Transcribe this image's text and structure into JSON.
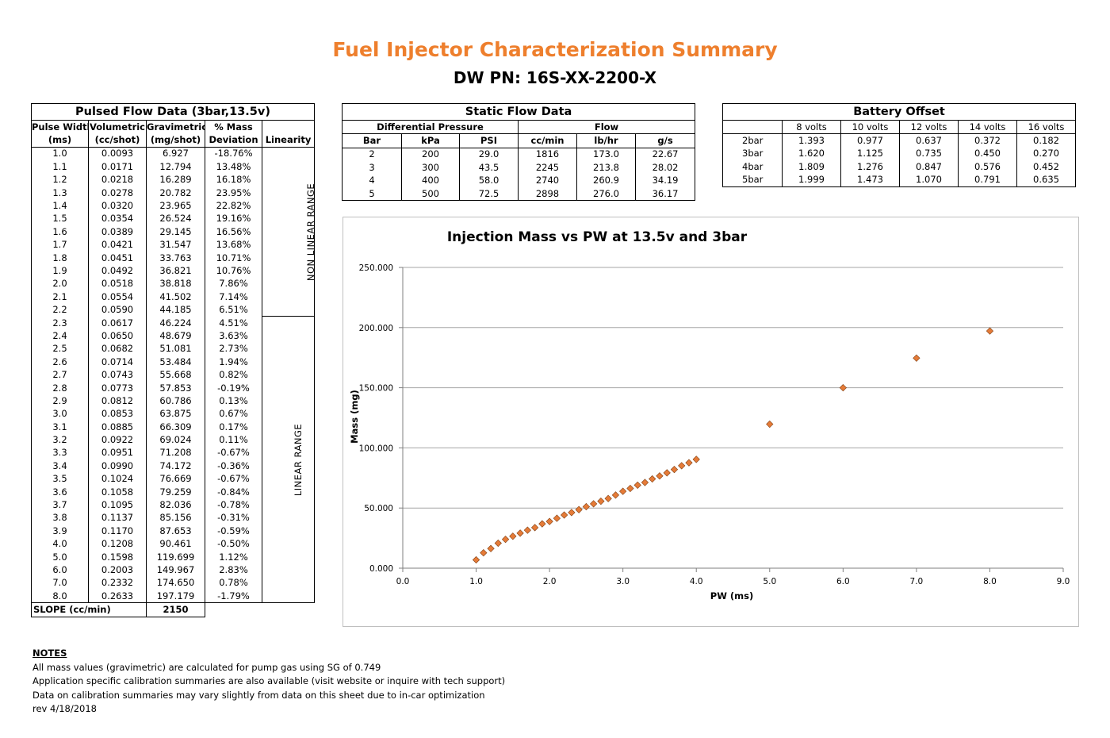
{
  "title": "Fuel Injector Characterization Summary",
  "subtitle": "DW PN: 16S-XX-2200-X",
  "pulsed": {
    "title": "Pulsed Flow Data (3bar,13.5v)",
    "headers": [
      [
        "Pulse Width",
        "(ms)"
      ],
      [
        "Volumetric",
        "(cc/shot)"
      ],
      [
        "Gravimetric",
        "(mg/shot)"
      ],
      [
        "% Mass",
        "Deviation"
      ],
      [
        "",
        "Linearity"
      ]
    ],
    "rows": [
      [
        "1.0",
        "0.0093",
        "6.927",
        "-18.76%"
      ],
      [
        "1.1",
        "0.0171",
        "12.794",
        "13.48%"
      ],
      [
        "1.2",
        "0.0218",
        "16.289",
        "16.18%"
      ],
      [
        "1.3",
        "0.0278",
        "20.782",
        "23.95%"
      ],
      [
        "1.4",
        "0.0320",
        "23.965",
        "22.82%"
      ],
      [
        "1.5",
        "0.0354",
        "26.524",
        "19.16%"
      ],
      [
        "1.6",
        "0.0389",
        "29.145",
        "16.56%"
      ],
      [
        "1.7",
        "0.0421",
        "31.547",
        "13.68%"
      ],
      [
        "1.8",
        "0.0451",
        "33.763",
        "10.71%"
      ],
      [
        "1.9",
        "0.0492",
        "36.821",
        "10.76%"
      ],
      [
        "2.0",
        "0.0518",
        "38.818",
        "7.86%"
      ],
      [
        "2.1",
        "0.0554",
        "41.502",
        "7.14%"
      ],
      [
        "2.2",
        "0.0590",
        "44.185",
        "6.51%"
      ],
      [
        "2.3",
        "0.0617",
        "46.224",
        "4.51%"
      ],
      [
        "2.4",
        "0.0650",
        "48.679",
        "3.63%"
      ],
      [
        "2.5",
        "0.0682",
        "51.081",
        "2.73%"
      ],
      [
        "2.6",
        "0.0714",
        "53.484",
        "1.94%"
      ],
      [
        "2.7",
        "0.0743",
        "55.668",
        "0.82%"
      ],
      [
        "2.8",
        "0.0773",
        "57.853",
        "-0.19%"
      ],
      [
        "2.9",
        "0.0812",
        "60.786",
        "0.13%"
      ],
      [
        "3.0",
        "0.0853",
        "63.875",
        "0.67%"
      ],
      [
        "3.1",
        "0.0885",
        "66.309",
        "0.17%"
      ],
      [
        "3.2",
        "0.0922",
        "69.024",
        "0.11%"
      ],
      [
        "3.3",
        "0.0951",
        "71.208",
        "-0.67%"
      ],
      [
        "3.4",
        "0.0990",
        "74.172",
        "-0.36%"
      ],
      [
        "3.5",
        "0.1024",
        "76.669",
        "-0.67%"
      ],
      [
        "3.6",
        "0.1058",
        "79.259",
        "-0.84%"
      ],
      [
        "3.7",
        "0.1095",
        "82.036",
        "-0.78%"
      ],
      [
        "3.8",
        "0.1137",
        "85.156",
        "-0.31%"
      ],
      [
        "3.9",
        "0.1170",
        "87.653",
        "-0.59%"
      ],
      [
        "4.0",
        "0.1208",
        "90.461",
        "-0.50%"
      ],
      [
        "5.0",
        "0.1598",
        "119.699",
        "1.12%"
      ],
      [
        "6.0",
        "0.2003",
        "149.967",
        "2.83%"
      ],
      [
        "7.0",
        "0.2332",
        "174.650",
        "0.78%"
      ],
      [
        "8.0",
        "0.2633",
        "197.179",
        "-1.79%"
      ]
    ],
    "nonlinear_label": "NON LINEAR RANGE",
    "linear_label": "LINEAR RANGE",
    "slope_label": "SLOPE (cc/min)",
    "slope_value": "2150"
  },
  "static": {
    "title": "Static Flow Data",
    "group_pressure": "Differential Pressure",
    "group_flow": "Flow",
    "headers": [
      "Bar",
      "kPa",
      "PSI",
      "cc/min",
      "lb/hr",
      "g/s"
    ],
    "rows": [
      [
        "2",
        "200",
        "29.0",
        "1816",
        "173.0",
        "22.67"
      ],
      [
        "3",
        "300",
        "43.5",
        "2245",
        "213.8",
        "28.02"
      ],
      [
        "4",
        "400",
        "58.0",
        "2740",
        "260.9",
        "34.19"
      ],
      [
        "5",
        "500",
        "72.5",
        "2898",
        "276.0",
        "36.17"
      ]
    ]
  },
  "battery": {
    "title": "Battery Offset",
    "headers": [
      "",
      "8 volts",
      "10 volts",
      "12 volts",
      "14 volts",
      "16 volts"
    ],
    "rows": [
      [
        "2bar",
        "1.393",
        "0.977",
        "0.637",
        "0.372",
        "0.182"
      ],
      [
        "3bar",
        "1.620",
        "1.125",
        "0.735",
        "0.450",
        "0.270"
      ],
      [
        "4bar",
        "1.809",
        "1.276",
        "0.847",
        "0.576",
        "0.452"
      ],
      [
        "5bar",
        "1.999",
        "1.473",
        "1.070",
        "0.791",
        "0.635"
      ]
    ]
  },
  "chart_data": {
    "type": "scatter",
    "title": "Injection Mass vs PW at 13.5v and 3bar",
    "xlabel": "PW (ms)",
    "ylabel": "Mass (mg)",
    "xlim": [
      0,
      9
    ],
    "ylim": [
      0,
      250
    ],
    "x_ticks": [
      "0.0",
      "1.0",
      "2.0",
      "3.0",
      "4.0",
      "5.0",
      "6.0",
      "7.0",
      "8.0",
      "9.0"
    ],
    "y_ticks": [
      "0.000",
      "50.000",
      "100.000",
      "150.000",
      "200.000",
      "250.000"
    ],
    "grid": "horizontal",
    "marker_color": "#e57b38",
    "marker_edge": "#7f3f12",
    "x": [
      1.0,
      1.1,
      1.2,
      1.3,
      1.4,
      1.5,
      1.6,
      1.7,
      1.8,
      1.9,
      2.0,
      2.1,
      2.2,
      2.3,
      2.4,
      2.5,
      2.6,
      2.7,
      2.8,
      2.9,
      3.0,
      3.1,
      3.2,
      3.3,
      3.4,
      3.5,
      3.6,
      3.7,
      3.8,
      3.9,
      4.0,
      5.0,
      6.0,
      7.0,
      8.0
    ],
    "y": [
      6.927,
      12.794,
      16.289,
      20.782,
      23.965,
      26.524,
      29.145,
      31.547,
      33.763,
      36.821,
      38.818,
      41.502,
      44.185,
      46.224,
      48.679,
      51.081,
      53.484,
      55.668,
      57.853,
      60.786,
      63.875,
      66.309,
      69.024,
      71.208,
      74.172,
      76.669,
      79.259,
      82.036,
      85.156,
      87.653,
      90.461,
      119.699,
      149.967,
      174.65,
      197.179
    ]
  },
  "notes": {
    "heading": "NOTES",
    "lines": [
      "All mass values (gravimetric) are calculated for pump gas using SG of 0.749",
      "Application specific calibration summaries are also available (visit website or inquire with tech support)",
      "Data on calibration summaries may vary slightly from data on this sheet due to in-car optimization",
      "rev 4/18/2018"
    ]
  }
}
